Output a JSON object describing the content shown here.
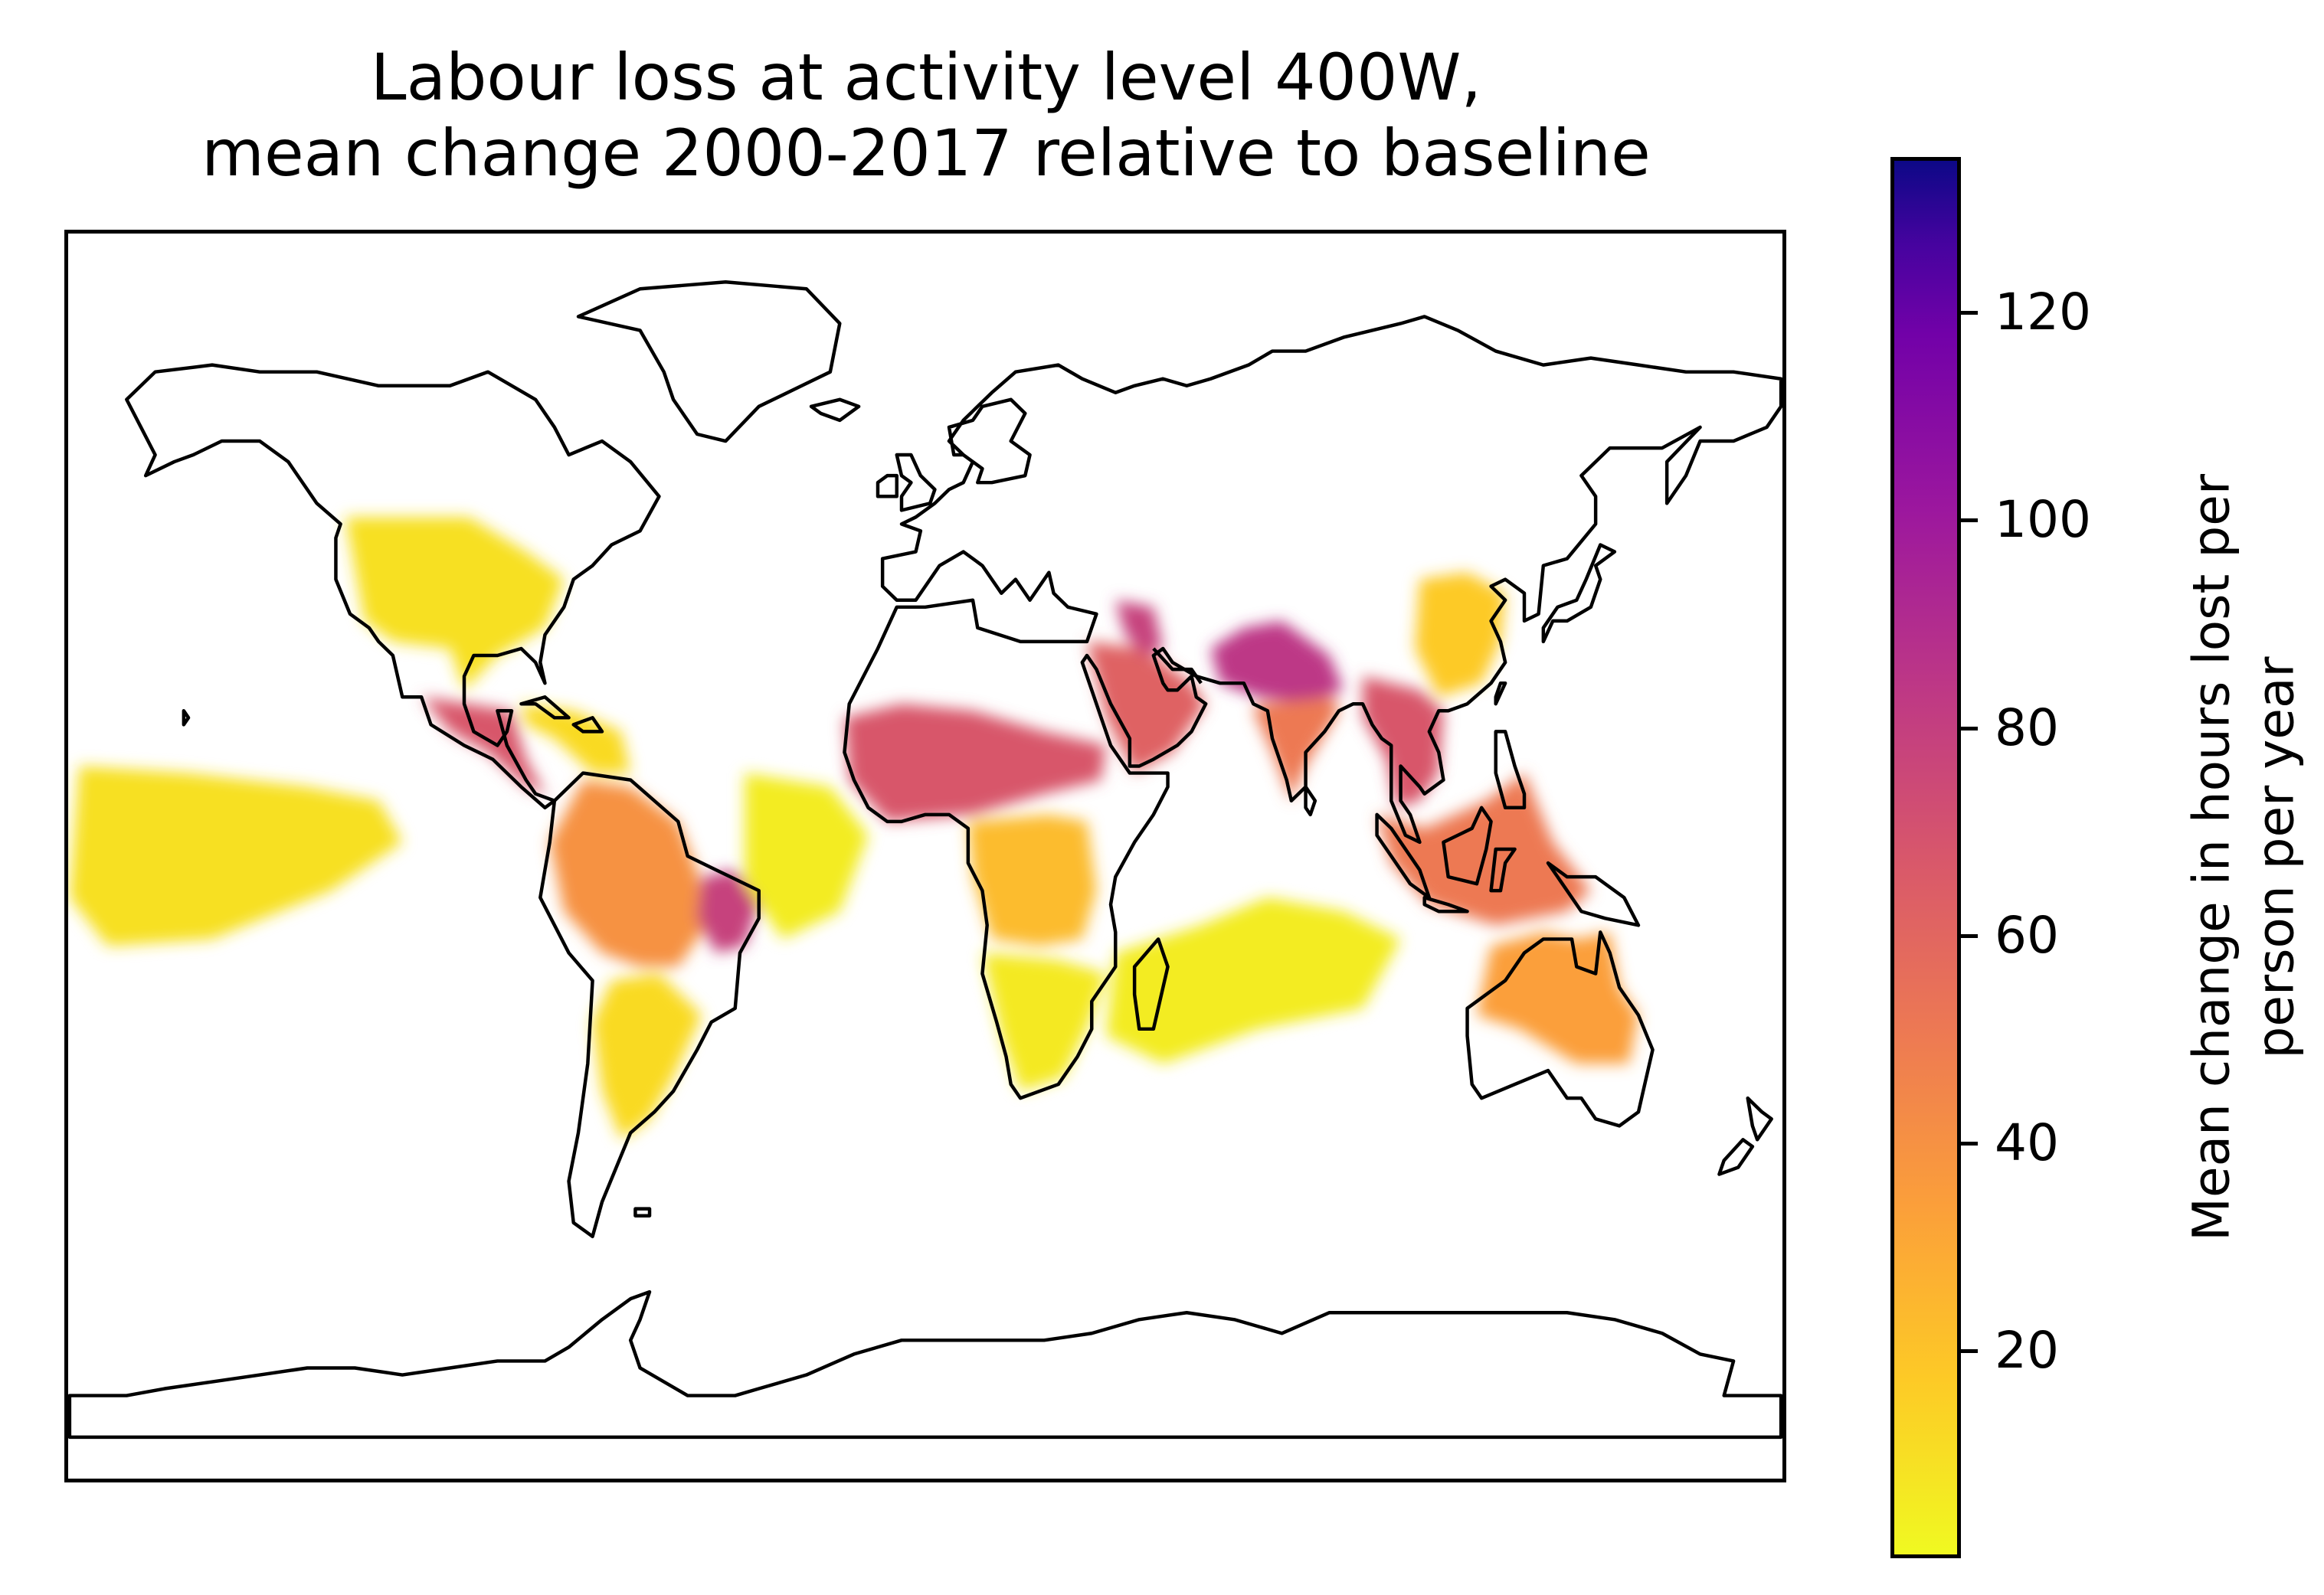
{
  "chart_data": {
    "type": "heatmap",
    "title": "Labour loss at activity level 400W,",
    "subtitle": "mean change 2000-2017 relative to baseline",
    "colorbar": {
      "label_line1": "Mean change in hours  lost per",
      "label_line2": "person per year",
      "range": [
        0,
        135
      ],
      "ticks": [
        20,
        40,
        60,
        80,
        100,
        120
      ],
      "tick_labels": [
        "20",
        "40",
        "60",
        "80",
        "100",
        "120"
      ],
      "colormap": "plasma (reversed)",
      "colors": [
        "#f0f921",
        "#fdca26",
        "#fb9f3a",
        "#ed7953",
        "#d8576b",
        "#bd3786",
        "#9c179e",
        "#7201a8",
        "#46039f",
        "#0d0887"
      ]
    },
    "regions": [
      {
        "name": "Western United States and Mexico",
        "value": 8
      },
      {
        "name": "Central America",
        "value": 60
      },
      {
        "name": "Caribbean",
        "value": 10
      },
      {
        "name": "Amazon and northern South America",
        "value": 35
      },
      {
        "name": "Northeast Brazil",
        "value": 70
      },
      {
        "name": "Southern South America",
        "value": 10
      },
      {
        "name": "West Africa / Sahel",
        "value": 60
      },
      {
        "name": "Central Africa",
        "value": 20
      },
      {
        "name": "Southern Africa",
        "value": 5
      },
      {
        "name": "Middle East and Arabian Peninsula",
        "value": 55
      },
      {
        "name": "Mesopotamia",
        "value": 70
      },
      {
        "name": "Pakistan and northern India",
        "value": 75
      },
      {
        "name": "India",
        "value": 45
      },
      {
        "name": "Southeast Asia",
        "value": 60
      },
      {
        "name": "Philippines and Indonesia",
        "value": 45
      },
      {
        "name": "Eastern China",
        "value": 15
      },
      {
        "name": "Northern Australia",
        "value": 30
      },
      {
        "name": "Tropical Pacific",
        "value": 8
      },
      {
        "name": "Tropical Atlantic",
        "value": 4
      },
      {
        "name": "Indian Ocean",
        "value": 4
      }
    ]
  }
}
